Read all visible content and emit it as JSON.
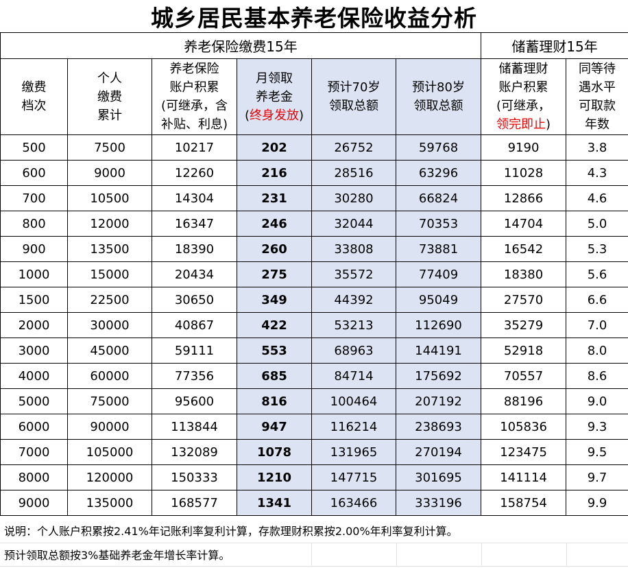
{
  "title": "城乡居民基本养老保险收益分析",
  "section_left": "养老保险缴费15年",
  "section_right": "储蓄理财15年",
  "headers": {
    "c1": [
      "缴费",
      "档次"
    ],
    "c2": [
      "个人",
      "缴费",
      "累计"
    ],
    "c3": [
      "养老保险",
      "账户积累",
      "(可继承，含",
      "补贴、利息)"
    ],
    "c4_lines": [
      "月领取",
      "养老金"
    ],
    "c4_open": "(",
    "c4_red": "终身发放",
    "c4_close": ")",
    "c5": [
      "预计70岁",
      "领取总额"
    ],
    "c6": [
      "预计80岁",
      "领取总额"
    ],
    "c7_lines": [
      "储蓄理财",
      "账户积累",
      "(可继承，"
    ],
    "c7_red": "领完即止",
    "c7_close": ")",
    "c8": [
      "同等待",
      "遇水平",
      "可取款",
      "年数"
    ]
  },
  "rows": [
    [
      "500",
      "7500",
      "10217",
      "202",
      "26752",
      "59768",
      "9190",
      "3.8"
    ],
    [
      "600",
      "9000",
      "12260",
      "216",
      "28516",
      "63296",
      "11028",
      "4.3"
    ],
    [
      "700",
      "10500",
      "14304",
      "231",
      "30280",
      "66824",
      "12866",
      "4.6"
    ],
    [
      "800",
      "12000",
      "16347",
      "246",
      "32044",
      "70353",
      "14704",
      "5.0"
    ],
    [
      "900",
      "13500",
      "18390",
      "260",
      "33808",
      "73881",
      "16542",
      "5.3"
    ],
    [
      "1000",
      "15000",
      "20434",
      "275",
      "35572",
      "77409",
      "18380",
      "5.6"
    ],
    [
      "1500",
      "22500",
      "30650",
      "349",
      "44392",
      "95049",
      "27570",
      "6.6"
    ],
    [
      "2000",
      "30000",
      "40867",
      "422",
      "53213",
      "112690",
      "35279",
      "7.0"
    ],
    [
      "3000",
      "45000",
      "59111",
      "553",
      "68963",
      "144191",
      "52918",
      "8.0"
    ],
    [
      "4000",
      "60000",
      "77356",
      "685",
      "84714",
      "175692",
      "70557",
      "8.6"
    ],
    [
      "5000",
      "75000",
      "95600",
      "816",
      "100464",
      "207192",
      "88196",
      "9.0"
    ],
    [
      "6000",
      "90000",
      "113844",
      "947",
      "116214",
      "238693",
      "105836",
      "9.3"
    ],
    [
      "7000",
      "105000",
      "132089",
      "1078",
      "131965",
      "270194",
      "123475",
      "9.5"
    ],
    [
      "8000",
      "120000",
      "150333",
      "1210",
      "147715",
      "301695",
      "141114",
      "9.7"
    ],
    [
      "9000",
      "135000",
      "168577",
      "1341",
      "163466",
      "333196",
      "158754",
      "9.9"
    ]
  ],
  "notes": {
    "line1": "说明：个人账户积累按2.41%年记账利率复利计算，存款理财积累按2.00%年利率复利计算。",
    "line2": "预计领取总额按3%基础养老金年增长率计算。"
  },
  "colors": {
    "highlight_bg": "#dce3f2",
    "accent_red": "#ee0000"
  }
}
